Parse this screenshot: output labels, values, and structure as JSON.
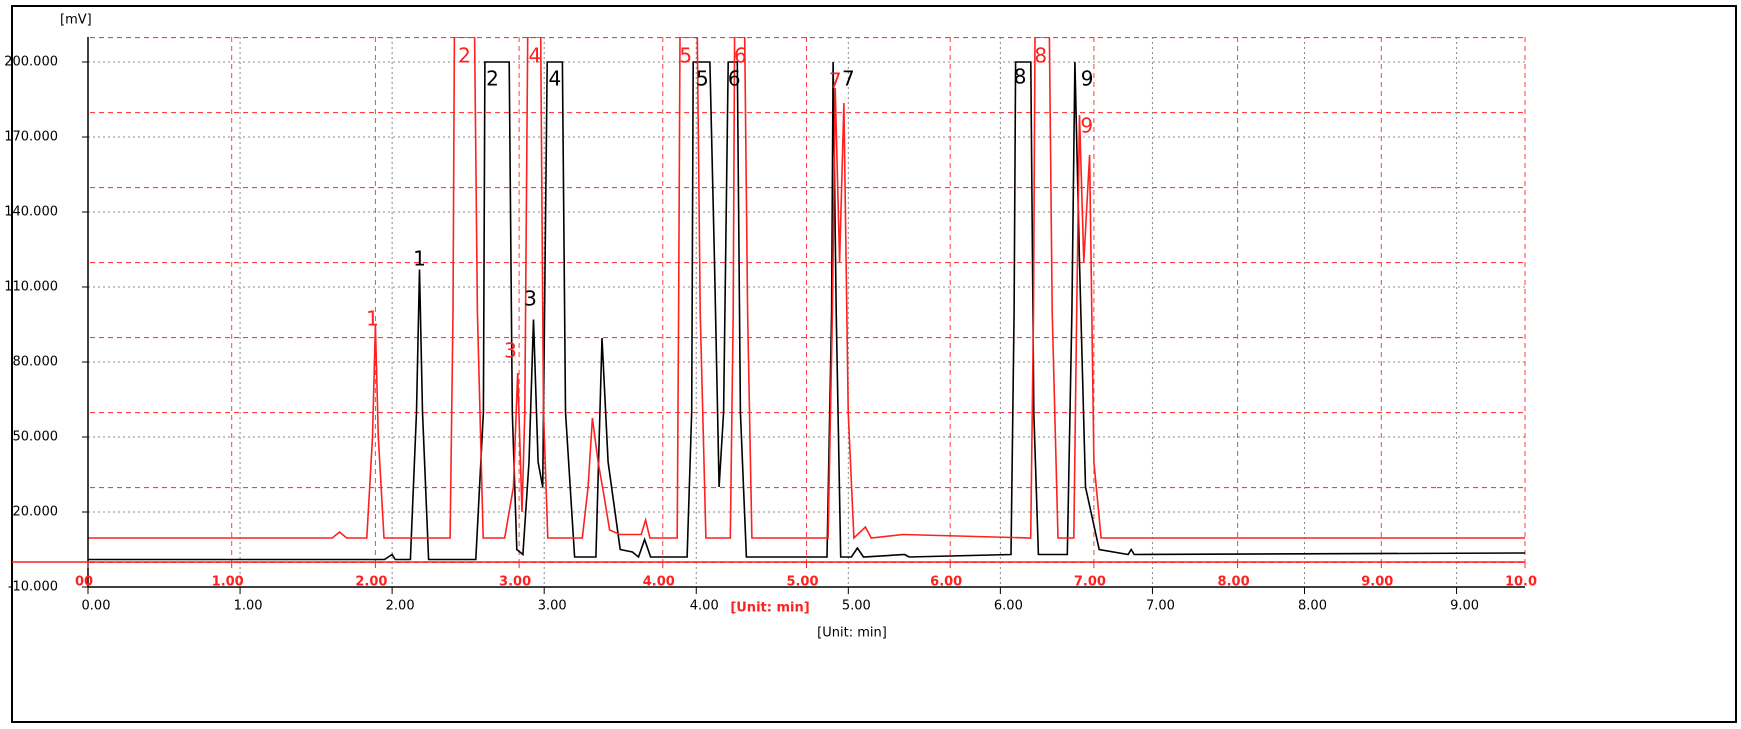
{
  "chart_data": {
    "type": "line",
    "y_label": "[mV]",
    "x_label": "[Unit: min]",
    "x2_label": "[Unit: min]",
    "xlim": [
      0,
      9.45
    ],
    "xticks": [
      {
        "value": 0,
        "label": "0.00"
      },
      {
        "value": 1,
        "label": "1.00"
      },
      {
        "value": 2,
        "label": "2.00"
      },
      {
        "value": 3,
        "label": "3.00"
      },
      {
        "value": 4,
        "label": "4.00"
      },
      {
        "value": 5,
        "label": "5.00"
      },
      {
        "value": 6,
        "label": "6.00"
      },
      {
        "value": 7,
        "label": "7.00"
      },
      {
        "value": 8,
        "label": "8.00"
      },
      {
        "value": 9,
        "label": "9.00"
      }
    ],
    "x2lim": [
      0,
      10
    ],
    "x2ticks": [
      {
        "value": 0,
        "label": "00"
      },
      {
        "value": 1,
        "label": "1.00"
      },
      {
        "value": 2,
        "label": "2.00"
      },
      {
        "value": 3,
        "label": "3.00"
      },
      {
        "value": 4,
        "label": "4.00"
      },
      {
        "value": 5,
        "label": "5.00"
      },
      {
        "value": 6,
        "label": "6.00"
      },
      {
        "value": 7,
        "label": "7.00"
      },
      {
        "value": 8,
        "label": "8.00"
      },
      {
        "value": 9,
        "label": "9.00"
      },
      {
        "value": 10,
        "label": "10.0"
      }
    ],
    "ylim": [
      -10,
      210
    ],
    "yticks": [
      {
        "value": -10,
        "label": "-10.000"
      },
      {
        "value": 20,
        "label": "20.000"
      },
      {
        "value": 50,
        "label": "50.000"
      },
      {
        "value": 80,
        "label": "80.000"
      },
      {
        "value": 110,
        "label": "110.000"
      },
      {
        "value": 140,
        "label": "140.000"
      },
      {
        "value": 170,
        "label": "170.000"
      },
      {
        "value": 200,
        "label": "200.000"
      }
    ],
    "grid": true,
    "series": [
      {
        "color": "#000000",
        "axis": "x",
        "x": [
          0,
          1.95,
          2.0,
          2.02,
          2.05,
          2.12,
          2.16,
          2.18,
          2.2,
          2.24,
          2.55,
          2.6,
          2.61,
          2.77,
          2.79,
          2.82,
          2.86,
          2.9,
          2.93,
          2.96,
          2.99,
          3.02,
          3.12,
          3.14,
          3.2,
          3.34,
          3.38,
          3.42,
          3.5,
          3.58,
          3.62,
          3.66,
          3.7,
          3.94,
          3.97,
          3.98,
          4.09,
          4.12,
          4.15,
          4.18,
          4.21,
          4.27,
          4.29,
          4.33,
          4.86,
          4.89,
          4.9,
          4.92,
          4.95,
          5.02,
          5.06,
          5.1,
          5.37,
          5.4,
          6.07,
          6.09,
          6.1,
          6.2,
          6.22,
          6.25,
          6.44,
          6.47,
          6.49,
          6.52,
          6.56,
          6.65,
          6.84,
          6.86,
          6.88,
          9.45
        ],
        "values": [
          1,
          1,
          3,
          1,
          1,
          1,
          60,
          117,
          60,
          1,
          1,
          60,
          200,
          200,
          60,
          5,
          3,
          40,
          97,
          40,
          30,
          200,
          200,
          60,
          2,
          2,
          89.6,
          40,
          5,
          4,
          2,
          9,
          2,
          2,
          60,
          200,
          200,
          120,
          30,
          60,
          200,
          200,
          60,
          2,
          2,
          100,
          200,
          100,
          2,
          2,
          5.6,
          2,
          3,
          2,
          3,
          100,
          200,
          200,
          60,
          3,
          3,
          100,
          200,
          120,
          30,
          5,
          3,
          5,
          3,
          3.6
        ],
        "peak_labels": [
          {
            "text": "1",
            "x": 2.18,
            "y": 120.8
          },
          {
            "text": "2",
            "x": 2.66,
            "y": 192.8
          },
          {
            "text": "3",
            "x": 2.91,
            "y": 104.8
          },
          {
            "text": "4",
            "x": 3.07,
            "y": 192.8
          },
          {
            "text": "5",
            "x": 4.04,
            "y": 192.8
          },
          {
            "text": "6",
            "x": 4.25,
            "y": 192.8
          },
          {
            "text": "7",
            "x": 5.0,
            "y": 192.8
          },
          {
            "text": "8",
            "x": 6.13,
            "y": 193.6
          },
          {
            "text": "9",
            "x": 6.57,
            "y": 192.8
          }
        ]
      },
      {
        "color": "#ff2020",
        "axis": "x2",
        "x": [
          0,
          1.7,
          1.75,
          1.8,
          1.94,
          1.98,
          2.0,
          2.02,
          2.06,
          2.52,
          2.54,
          2.55,
          2.69,
          2.71,
          2.75,
          2.9,
          2.96,
          2.99,
          3.02,
          3.04,
          3.06,
          3.15,
          3.17,
          3.2,
          3.44,
          3.48,
          3.51,
          3.55,
          3.59,
          3.63,
          3.7,
          3.85,
          3.88,
          3.91,
          4.1,
          4.11,
          4.12,
          4.24,
          4.26,
          4.3,
          4.47,
          4.49,
          4.5,
          4.57,
          4.59,
          4.62,
          5.15,
          5.18,
          5.2,
          5.23,
          5.26,
          5.29,
          5.33,
          5.41,
          5.45,
          5.67,
          6.56,
          6.58,
          6.59,
          6.69,
          6.71,
          6.75,
          6.86,
          6.88,
          6.9,
          6.93,
          6.97,
          7.0,
          7.05,
          10
        ],
        "values": [
          9.6,
          9.6,
          12,
          9.6,
          9.6,
          50,
          94.8,
          50,
          9.6,
          9.6,
          100,
          210,
          210,
          100,
          9.6,
          9.6,
          30,
          75.6,
          20,
          60,
          210,
          210,
          60,
          9.6,
          9.6,
          30,
          57.6,
          40,
          26.8,
          12.8,
          11,
          11,
          16.8,
          9.6,
          9.6,
          100,
          210,
          210,
          100,
          9.6,
          9.6,
          100,
          210,
          210,
          100,
          9.6,
          9.6,
          100,
          189.6,
          120,
          183.6,
          60,
          9.6,
          14,
          9.6,
          11,
          9.6,
          100,
          210,
          210,
          100,
          9.6,
          9.6,
          100,
          178.8,
          120,
          162.8,
          40,
          9.6,
          9.6
        ],
        "peak_labels": [
          {
            "text": "1",
            "x": 1.98,
            "y": 96.8
          },
          {
            "text": "2",
            "x": 2.62,
            "y": 202
          },
          {
            "text": "3",
            "x": 2.94,
            "y": 84
          },
          {
            "text": "4",
            "x": 3.11,
            "y": 202
          },
          {
            "text": "5",
            "x": 4.16,
            "y": 202
          },
          {
            "text": "6",
            "x": 4.54,
            "y": 202
          },
          {
            "text": "7",
            "x": 5.2,
            "y": 192
          },
          {
            "text": "8",
            "x": 6.63,
            "y": 202
          },
          {
            "text": "9",
            "x": 6.95,
            "y": 174
          }
        ]
      }
    ]
  }
}
